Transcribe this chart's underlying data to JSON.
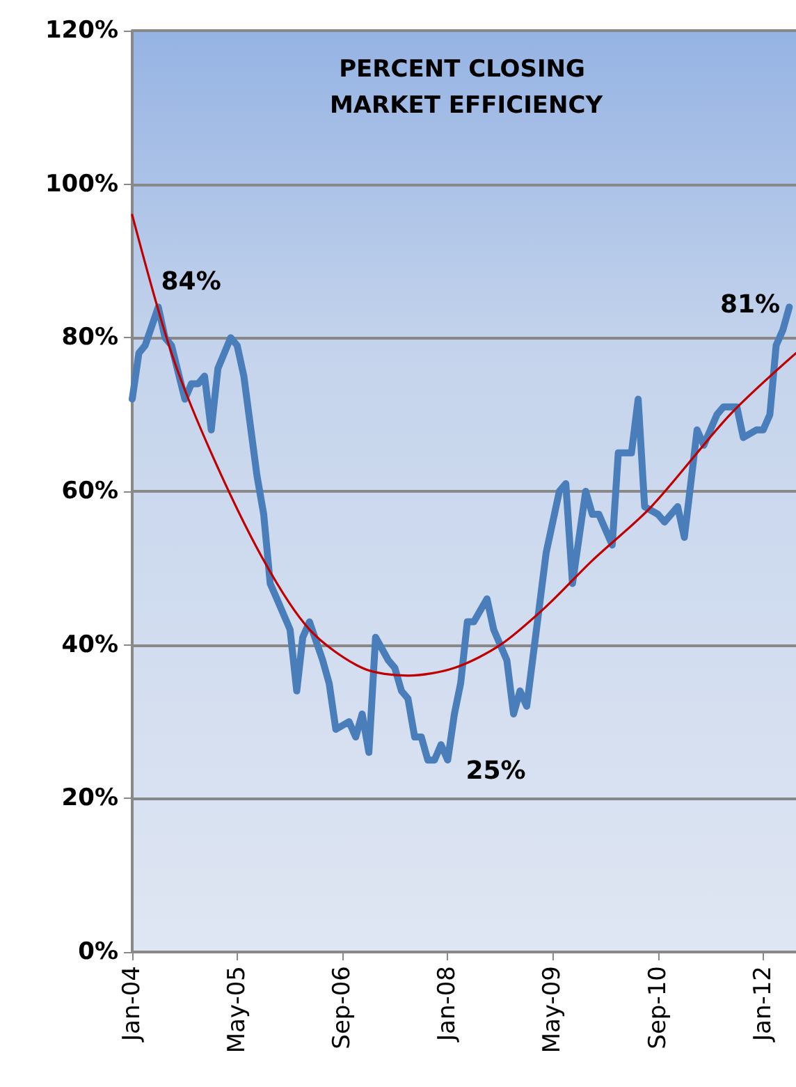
{
  "chart_data": {
    "type": "line",
    "title": "PERCENT CLOSING MARKET EFFICIENCY",
    "xlim": [
      "2004-01",
      "2012-06"
    ],
    "xticks": [
      {
        "value": "2004-01",
        "label": "Jan-04"
      },
      {
        "value": "2005-05",
        "label": "May-05"
      },
      {
        "value": "2006-09",
        "label": "Sep-06"
      },
      {
        "value": "2008-01",
        "label": "Jan-08"
      },
      {
        "value": "2009-05",
        "label": "May-09"
      },
      {
        "value": "2010-09",
        "label": "Sep-10"
      },
      {
        "value": "2012-01",
        "label": "Jan-12"
      }
    ],
    "ylim": [
      0,
      120
    ],
    "yticks": [
      {
        "value": 0,
        "label": "0%"
      },
      {
        "value": 20,
        "label": "20%"
      },
      {
        "value": 40,
        "label": "40%"
      },
      {
        "value": 60,
        "label": "60%"
      },
      {
        "value": 80,
        "label": "80%"
      },
      {
        "value": 100,
        "label": "100%"
      },
      {
        "value": 120,
        "label": "120%"
      }
    ],
    "grid": "y",
    "marker": "none",
    "line_style": "solid",
    "series": [
      {
        "color": "#4a7ebb",
        "x": [
          "2004-01",
          "2004-02",
          "2004-03",
          "2004-05",
          "2004-06",
          "2004-07",
          "2004-09",
          "2004-10",
          "2004-11",
          "2004-12",
          "2005-01",
          "2005-02",
          "2005-04",
          "2005-05",
          "2005-06",
          "2005-08",
          "2005-09",
          "2005-10",
          "2005-11",
          "2006-01",
          "2006-02",
          "2006-03",
          "2006-04",
          "2006-06",
          "2006-07",
          "2006-08",
          "2006-10",
          "2006-11",
          "2006-12",
          "2007-01",
          "2007-02",
          "2007-04",
          "2007-05",
          "2007-06",
          "2007-07",
          "2007-08",
          "2007-09",
          "2007-10",
          "2007-11",
          "2007-12",
          "2008-01",
          "2008-02",
          "2008-03",
          "2008-04",
          "2008-05",
          "2008-07",
          "2008-08",
          "2008-10",
          "2008-11",
          "2008-12",
          "2009-01",
          "2009-04",
          "2009-06",
          "2009-07",
          "2009-08",
          "2009-10",
          "2009-11",
          "2009-12",
          "2010-02",
          "2010-03",
          "2010-05",
          "2010-06",
          "2010-07",
          "2010-09",
          "2010-10",
          "2010-12",
          "2011-01",
          "2011-03",
          "2011-04",
          "2011-06",
          "2011-07",
          "2011-09",
          "2011-10",
          "2011-12",
          "2012-01",
          "2012-02",
          "2012-03",
          "2012-04",
          "2012-05"
        ],
        "values": [
          72,
          78,
          79,
          84,
          80,
          79,
          72,
          74,
          74,
          75,
          68,
          76,
          80,
          79,
          75,
          62,
          57,
          48,
          46,
          42,
          34,
          41,
          43,
          38,
          35,
          29,
          30,
          28,
          31,
          26,
          41,
          38,
          37,
          34,
          33,
          28,
          28,
          25,
          25,
          27,
          25,
          31,
          35,
          43,
          43,
          46,
          42,
          38,
          31,
          34,
          32,
          52,
          60,
          61,
          48,
          60,
          57,
          57,
          53,
          65,
          65,
          72,
          58,
          57,
          56,
          58,
          54,
          68,
          66,
          70,
          71,
          71,
          67,
          68,
          68,
          70,
          79,
          81,
          84
        ],
        "value_labels": [
          null,
          null,
          null,
          "84%",
          null,
          null,
          null,
          null,
          null,
          null,
          null,
          null,
          null,
          null,
          null,
          null,
          null,
          null,
          null,
          null,
          null,
          null,
          null,
          null,
          null,
          null,
          null,
          null,
          null,
          null,
          null,
          null,
          null,
          null,
          null,
          null,
          null,
          null,
          null,
          null,
          "25%",
          null,
          null,
          null,
          null,
          null,
          null,
          null,
          null,
          null,
          null,
          null,
          null,
          null,
          null,
          null,
          null,
          null,
          null,
          null,
          null,
          null,
          null,
          null,
          null,
          null,
          null,
          null,
          null,
          null,
          null,
          null,
          null,
          null,
          null,
          null,
          null,
          "81%",
          null
        ]
      },
      {
        "type": "line",
        "color": "#c00000",
        "x": [
          "2004-01",
          "2004-07",
          "2005-01",
          "2005-09",
          "2006-04",
          "2006-12",
          "2007-07",
          "2008-02",
          "2008-09",
          "2009-04",
          "2009-11",
          "2010-08",
          "2011-08",
          "2012-06"
        ],
        "values": [
          96,
          78,
          65,
          51,
          42,
          37,
          36,
          37,
          40,
          45,
          51,
          58,
          70,
          78
        ]
      }
    ]
  }
}
